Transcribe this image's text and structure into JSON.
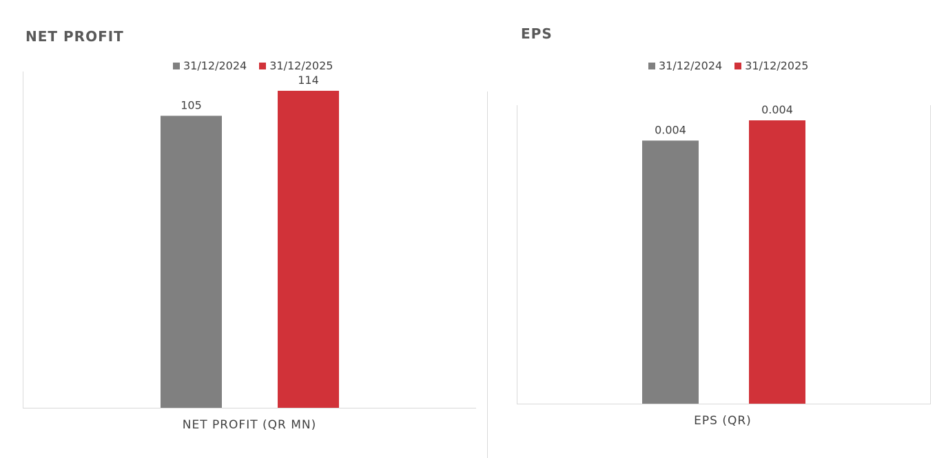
{
  "colors": {
    "series_2024": "#808080",
    "series_2025": "#D13239",
    "title": "#595959",
    "label": "#404040",
    "axis": "#d9d9d9"
  },
  "chart_data": [
    {
      "type": "bar",
      "title": "NET PROFIT",
      "categories": [
        "NET PROFIT (QR MN)"
      ],
      "series": [
        {
          "name": "31/12/2024",
          "values": [
            105
          ]
        },
        {
          "name": "31/12/2025",
          "values": [
            114
          ]
        }
      ],
      "data_labels": [
        "105",
        "114"
      ],
      "ylim": [
        0,
        114
      ],
      "grid": false,
      "legend": "top-center"
    },
    {
      "type": "bar",
      "title": "EPS",
      "categories": [
        "EPS (QR)"
      ],
      "series": [
        {
          "name": "31/12/2024",
          "values": [
            0.0039
          ]
        },
        {
          "name": "31/12/2025",
          "values": [
            0.0042
          ]
        }
      ],
      "data_labels": [
        "0.004",
        "0.004"
      ],
      "ylim": [
        0,
        0.0042
      ],
      "grid": false,
      "legend": "top-center"
    }
  ]
}
